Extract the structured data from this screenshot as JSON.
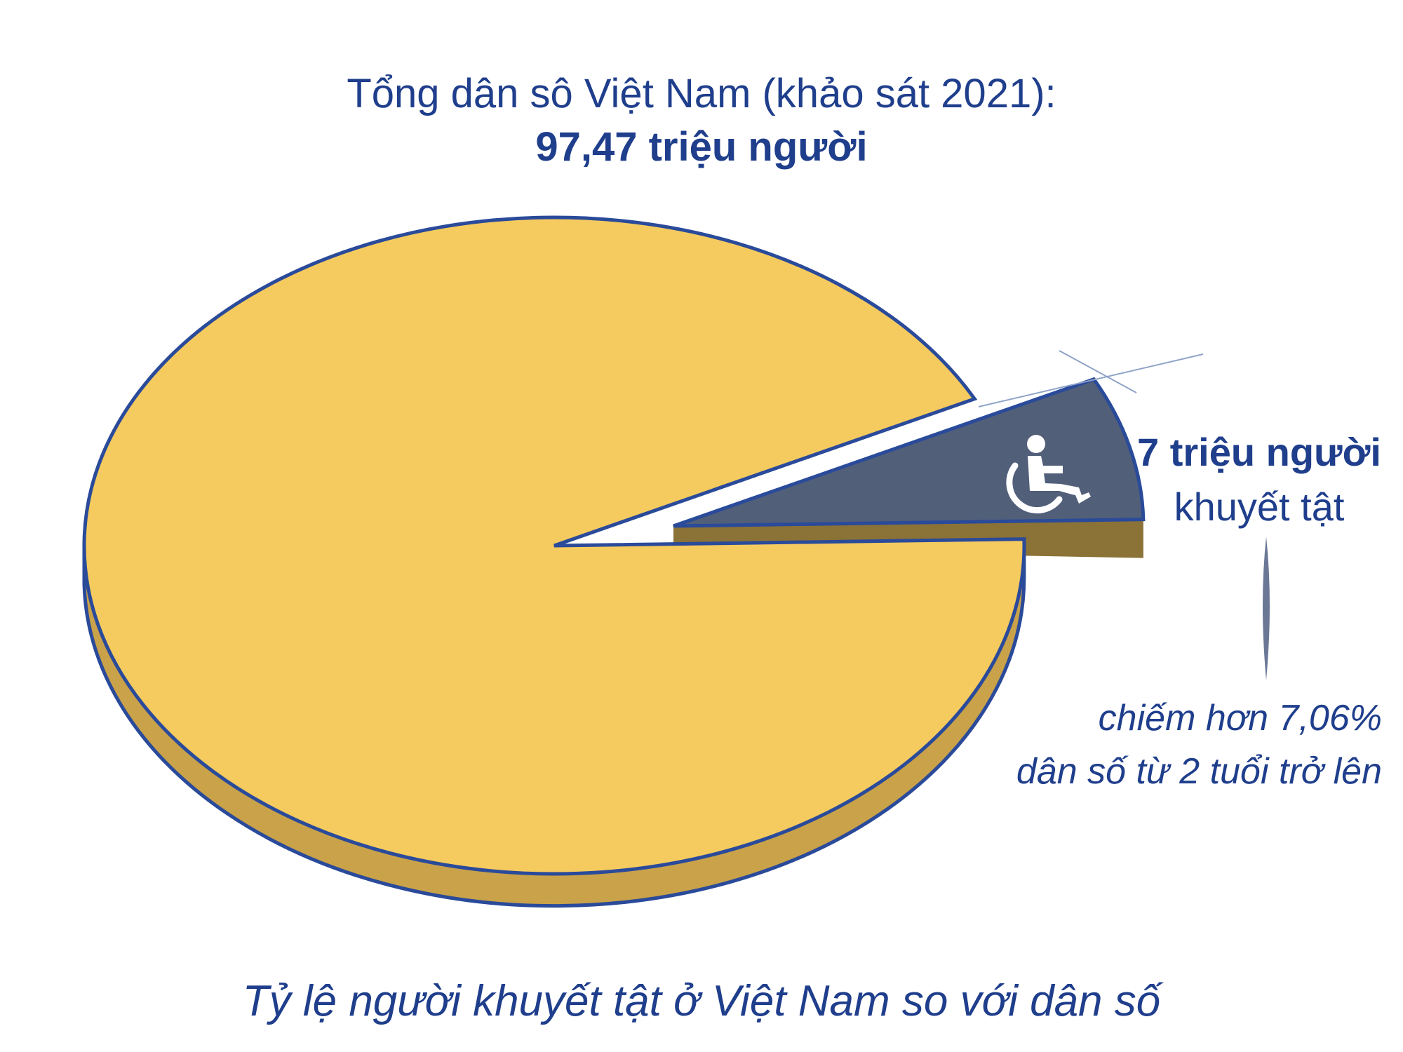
{
  "chart_data": {
    "type": "pie",
    "title": "Tổng dân sô Việt Nam (khảo sát 2021):",
    "subtitle": "97,47 triệu người",
    "caption": "Tỷ lệ người khuyết tật ở Việt Nam so với dân số",
    "total_millions": 97.47,
    "slices": [
      {
        "value": 92.94,
        "color": "#f5cb5f"
      },
      {
        "value": 7.06,
        "color": "#515f79",
        "exploded": true,
        "label_value": "7 triệu người",
        "label_sub": "khuyết tật",
        "icon": "wheelchair-icon"
      }
    ],
    "annotation": [
      "chiếm hơn 7,06%",
      "dân số từ 2 tuổi trở lên"
    ]
  },
  "colors": {
    "text": "#1f3e8c",
    "outline": "#2a4a9a",
    "main_slice": "#f5cb5f",
    "main_slice_side": "#c9a24a",
    "disability_slice": "#515f79",
    "disability_slice_side": "#8b7236"
  }
}
